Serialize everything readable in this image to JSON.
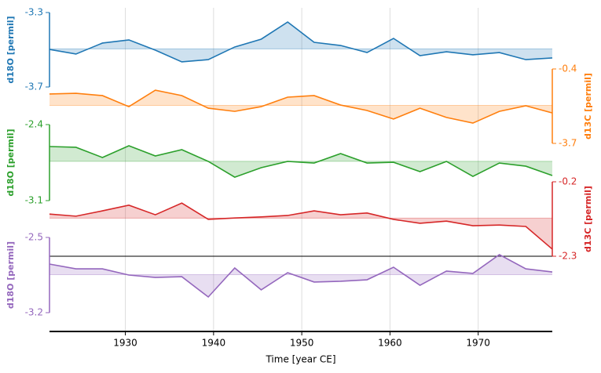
{
  "chart_data": {
    "type": "line",
    "xlabel": "Time [year CE]",
    "x": [
      1921.4,
      1924.4,
      1927.4,
      1930.4,
      1933.4,
      1936.4,
      1939.4,
      1942.4,
      1945.4,
      1948.4,
      1951.4,
      1954.4,
      1957.4,
      1960.4,
      1963.4,
      1966.4,
      1969.4,
      1972.4,
      1975.4,
      1978.4
    ],
    "xlim": [
      1921.4,
      1978.4
    ],
    "xticks": [
      1930,
      1940,
      1950,
      1960,
      1970
    ],
    "grid": true,
    "series": [
      {
        "color": "#1f77b4",
        "ylabel": "d18O [permil]",
        "side": "left",
        "ylim": [
          -3.7,
          -3.3
        ],
        "yticks": [
          -3.7,
          -3.3
        ],
        "values": [
          -3.498,
          -3.523,
          -3.464,
          -3.447,
          -3.502,
          -3.565,
          -3.553,
          -3.485,
          -3.443,
          -3.351,
          -3.46,
          -3.477,
          -3.515,
          -3.439,
          -3.532,
          -3.511,
          -3.527,
          -3.515,
          -3.553,
          -3.544
        ]
      },
      {
        "color": "#ff7f0e",
        "ylabel": "d13C [permil]",
        "side": "right",
        "ylim": [
          -3.7,
          -0.4
        ],
        "yticks": [
          -3.7,
          -0.4
        ],
        "values": [
          -1.51,
          -1.48,
          -1.58,
          -2.07,
          -1.34,
          -1.58,
          -2.14,
          -2.28,
          -2.07,
          -1.65,
          -1.58,
          -2.0,
          -2.24,
          -2.62,
          -2.14,
          -2.55,
          -2.8,
          -2.28,
          -2.03,
          -2.35
        ]
      },
      {
        "color": "#2ca02c",
        "ylabel": "d18O [permil]",
        "side": "left",
        "ylim": [
          -3.1,
          -2.4
        ],
        "yticks": [
          -3.1,
          -2.4
        ],
        "values": [
          -2.602,
          -2.609,
          -2.703,
          -2.595,
          -2.689,
          -2.631,
          -2.739,
          -2.884,
          -2.797,
          -2.739,
          -2.754,
          -2.667,
          -2.754,
          -2.747,
          -2.833,
          -2.739,
          -2.877,
          -2.754,
          -2.783,
          -2.869
        ]
      },
      {
        "color": "#d62728",
        "ylabel": "d13C [permil]",
        "side": "right",
        "ylim": [
          -2.3,
          -0.2
        ],
        "yticks": [
          -2.3,
          -0.2
        ],
        "values": [
          -1.11,
          -1.17,
          -1.02,
          -0.86,
          -1.13,
          -0.8,
          -1.26,
          -1.22,
          -1.19,
          -1.15,
          -1.02,
          -1.13,
          -1.08,
          -1.26,
          -1.37,
          -1.31,
          -1.44,
          -1.42,
          -1.46,
          -2.1
        ]
      },
      {
        "color": "#9467bd",
        "ylabel": "d18O [permil]",
        "side": "left",
        "ylim": [
          -3.2,
          -2.5
        ],
        "yticks": [
          -3.2,
          -2.5
        ],
        "values": [
          -2.748,
          -2.792,
          -2.792,
          -2.85,
          -2.872,
          -2.865,
          -3.054,
          -2.784,
          -2.988,
          -2.828,
          -2.915,
          -2.908,
          -2.894,
          -2.777,
          -2.945,
          -2.813,
          -2.835,
          -2.66,
          -2.792,
          -2.821
        ]
      }
    ]
  }
}
